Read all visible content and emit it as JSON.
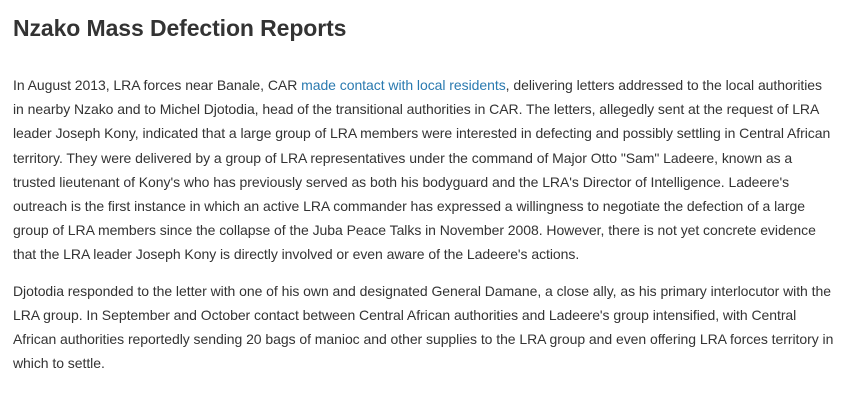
{
  "article": {
    "title": "Nzako Mass Defection Reports",
    "paragraphs": [
      {
        "before_link": "In August 2013, LRA forces near Banale, CAR ",
        "link": "made contact with local residents",
        "after_link": ", delivering letters addressed to the local authorities in nearby Nzako and to Michel Djotodia, head of the transitional authorities in CAR. The letters, allegedly sent at the request of LRA leader Joseph Kony, indicated that a large group of LRA members were interested in defecting and possibly settling in Central African territory. They were delivered by a group of LRA representatives under the command of Major Otto \"Sam\" Ladeere, known as a trusted lieutenant of Kony's who has previously served as both his bodyguard and the LRA's Director of Intelligence. Ladeere's outreach is the first instance in which an active LRA commander has expressed a willingness to negotiate the defection of a large group of LRA members since the collapse of the Juba Peace Talks in November 2008. However, there is not yet concrete evidence that the LRA leader Joseph Kony is directly involved or even aware of the Ladeere's actions."
      },
      {
        "text": "Djotodia responded to the letter with one of his own and designated General Damane, a close ally, as his primary interlocutor with the LRA group. In September and October contact between Central African authorities and Ladeere's group intensified, with Central African authorities reportedly sending 20 bags of manioc and other supplies to the LRA group and even offering LRA forces territory in which to settle."
      }
    ]
  },
  "colors": {
    "text": "#333333",
    "link": "#2a7ab0",
    "background": "#ffffff"
  }
}
